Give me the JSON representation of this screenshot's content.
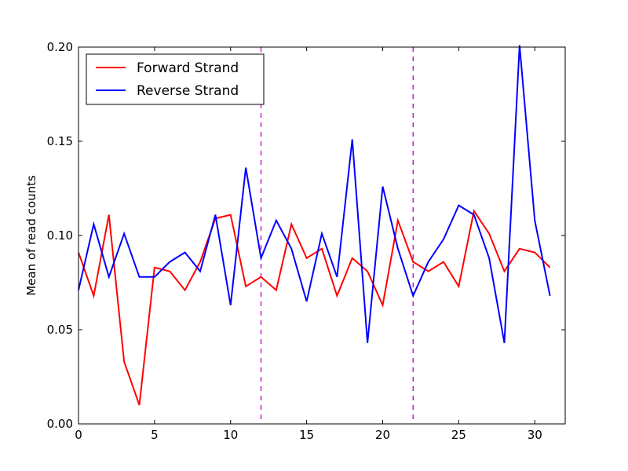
{
  "chart_data": {
    "type": "line",
    "title": "",
    "xlabel": "",
    "ylabel": "Mean of read counts",
    "xlim": [
      0,
      32
    ],
    "ylim": [
      0,
      0.2
    ],
    "xticks": [
      0,
      5,
      10,
      15,
      20,
      25,
      30
    ],
    "yticks": [
      0,
      0.05,
      0.1,
      0.15,
      0.2
    ],
    "xtick_labels": [
      "0",
      "5",
      "10",
      "15",
      "20",
      "25",
      "30"
    ],
    "ytick_labels": [
      "0.00",
      "0.05",
      "0.10",
      "0.15",
      "0.20"
    ],
    "grid": false,
    "legend": "top-left",
    "x": [
      0,
      1,
      2,
      3,
      4,
      5,
      6,
      7,
      8,
      9,
      10,
      11,
      12,
      13,
      14,
      15,
      16,
      17,
      18,
      19,
      20,
      21,
      22,
      23,
      24,
      25,
      26,
      27,
      28,
      29,
      30,
      31
    ],
    "series": [
      {
        "name": "Forward Strand",
        "color": "#ff0000",
        "values": [
          0.091,
          0.068,
          0.111,
          0.033,
          0.01,
          0.083,
          0.081,
          0.071,
          0.086,
          0.109,
          0.111,
          0.073,
          0.078,
          0.071,
          0.106,
          0.088,
          0.093,
          0.068,
          0.088,
          0.081,
          0.063,
          0.108,
          0.086,
          0.081,
          0.086,
          0.073,
          0.113,
          0.101,
          0.081,
          0.093,
          0.091,
          0.083
        ]
      },
      {
        "name": "Reverse Strand",
        "color": "#0000ff",
        "values": [
          0.071,
          0.106,
          0.078,
          0.101,
          0.078,
          0.078,
          0.086,
          0.091,
          0.081,
          0.111,
          0.063,
          0.136,
          0.088,
          0.108,
          0.093,
          0.065,
          0.101,
          0.078,
          0.151,
          0.043,
          0.126,
          0.093,
          0.068,
          0.086,
          0.098,
          0.116,
          0.111,
          0.088,
          0.043,
          0.201,
          0.108,
          0.068
        ]
      }
    ],
    "vlines": [
      {
        "x": 12,
        "color": "#bf00bf",
        "style": "dashed"
      },
      {
        "x": 22,
        "color": "#bf00bf",
        "style": "dashed"
      }
    ]
  }
}
